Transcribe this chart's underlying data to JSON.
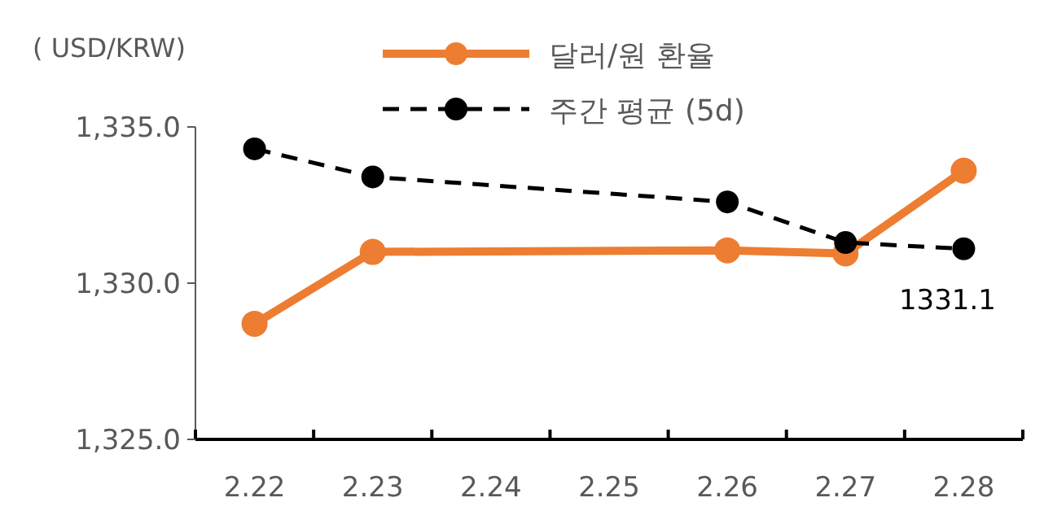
{
  "chart_data": {
    "type": "line",
    "ylabel": "( USD/KRW)",
    "categories": [
      "2.22",
      "2.23",
      "2.24",
      "2.25",
      "2.26",
      "2.27",
      "2.28"
    ],
    "series": [
      {
        "name": "달러/원 환율",
        "color": "#ed7d31",
        "values": [
          1328.7,
          1331.0,
          null,
          null,
          1331.05,
          1330.95,
          1333.6
        ],
        "line_style": "solid",
        "marker": "circle"
      },
      {
        "name": "주간 평균 (5d)",
        "color": "#000000",
        "values": [
          1334.3,
          1333.4,
          null,
          null,
          1332.6,
          1331.3,
          1331.1
        ],
        "line_style": "dashed",
        "marker": "circle",
        "value_labels": [
          null,
          null,
          null,
          null,
          null,
          null,
          "1331.1"
        ]
      }
    ],
    "ylim": [
      1325,
      1335
    ],
    "yticks": [
      {
        "value": 1325,
        "label": "1,325.0"
      },
      {
        "value": 1330,
        "label": "1,330.0"
      },
      {
        "value": 1335,
        "label": "1,335.0"
      }
    ],
    "legend": "top"
  }
}
